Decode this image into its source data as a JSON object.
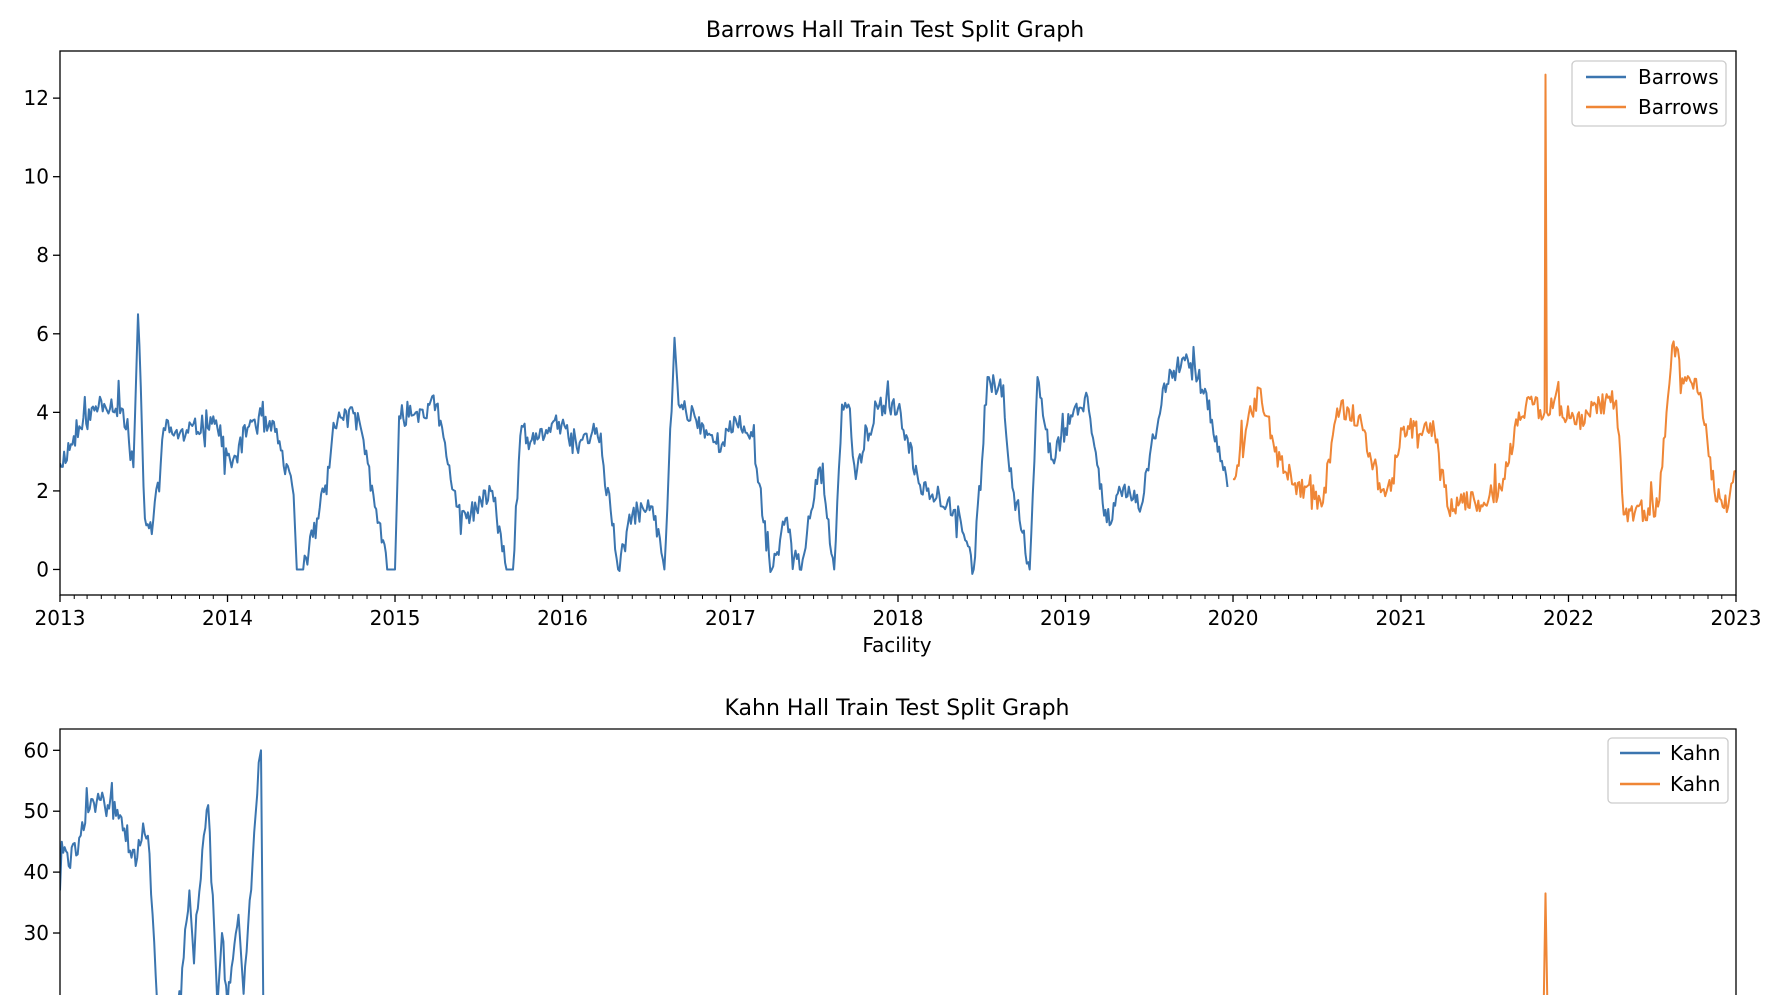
{
  "chart_data": [
    {
      "type": "line",
      "title": "Barrows Hall Train Test Split Graph",
      "xlabel": "Facility",
      "ylabel": "",
      "xlim": [
        "2013-01-01",
        "2023-01-01"
      ],
      "ylim": [
        -0.65,
        13.2
      ],
      "x_ticks": [
        "2013",
        "2014",
        "2015",
        "2016",
        "2017",
        "2018",
        "2019",
        "2020",
        "2021",
        "2022",
        "2023"
      ],
      "y_ticks": [
        0,
        2,
        4,
        6,
        8,
        10,
        12
      ],
      "grid": false,
      "legend": "top-right",
      "series": [
        {
          "name": "Barrows",
          "role": "train",
          "color": "#3b75af",
          "x": [
            "2013-01-01",
            "2013-02-15",
            "2013-04-01",
            "2013-05-15",
            "2013-06-10",
            "2013-06-20",
            "2013-07-05",
            "2013-07-20",
            "2013-08-15",
            "2013-10-01",
            "2013-12-01",
            "2014-01-10",
            "2014-02-20",
            "2014-04-15",
            "2014-05-25",
            "2014-06-01",
            "2014-06-15",
            "2014-07-15",
            "2014-09-01",
            "2014-10-15",
            "2014-11-15",
            "2014-12-15",
            "2015-01-01",
            "2015-01-10",
            "2015-02-15",
            "2015-04-01",
            "2015-05-15",
            "2015-06-15",
            "2015-08-01",
            "2015-09-01",
            "2015-09-15",
            "2015-10-01",
            "2015-11-01",
            "2015-12-15",
            "2016-02-01",
            "2016-03-15",
            "2016-04-15",
            "2016-05-01",
            "2016-06-01",
            "2016-07-15",
            "2016-08-10",
            "2016-09-01",
            "2016-09-10",
            "2016-10-15",
            "2016-12-01",
            "2017-01-15",
            "2017-02-15",
            "2017-04-01",
            "2017-05-01",
            "2017-06-01",
            "2017-07-15",
            "2017-08-15",
            "2017-09-01",
            "2017-09-15",
            "2017-10-01",
            "2017-11-15",
            "2018-01-01",
            "2018-02-15",
            "2018-04-01",
            "2018-05-15",
            "2018-06-15",
            "2018-07-15",
            "2018-08-15",
            "2018-09-01",
            "2018-10-15",
            "2018-11-01",
            "2018-12-01",
            "2019-01-01",
            "2019-02-15",
            "2019-04-01",
            "2019-05-01",
            "2019-06-15",
            "2019-08-01",
            "2019-09-15",
            "2019-11-01",
            "2019-12-20"
          ],
          "y": [
            2.7,
            3.6,
            4.3,
            4.1,
            2.6,
            6.5,
            1.3,
            0.9,
            3.6,
            3.4,
            3.9,
            2.6,
            3.8,
            3.5,
            1.9,
            0.0,
            0.0,
            1.3,
            4.0,
            3.8,
            1.9,
            0.0,
            0.0,
            3.9,
            4.0,
            4.2,
            1.6,
            1.4,
            2.0,
            0.0,
            0.0,
            3.4,
            3.2,
            3.8,
            3.1,
            3.6,
            1.5,
            0.0,
            1.4,
            1.6,
            0.0,
            5.9,
            4.2,
            3.9,
            3.2,
            3.7,
            3.5,
            0.0,
            1.3,
            0.0,
            2.6,
            0.0,
            4.2,
            4.2,
            2.3,
            4.2,
            4.1,
            2.2,
            1.9,
            1.4,
            0.0,
            4.9,
            4.4,
            2.5,
            0.0,
            4.9,
            2.8,
            3.6,
            4.5,
            1.2,
            2.0,
            1.6,
            4.6,
            5.4,
            4.6,
            2.1
          ]
        },
        {
          "name": "Barrows",
          "role": "test",
          "color": "#ef8636",
          "x": [
            "2020-01-01",
            "2020-02-01",
            "2020-03-01",
            "2020-04-01",
            "2020-05-15",
            "2020-07-15",
            "2020-08-15",
            "2020-10-01",
            "2020-11-15",
            "2020-12-10",
            "2021-01-01",
            "2021-03-15",
            "2021-04-15",
            "2021-05-15",
            "2021-07-01",
            "2021-08-15",
            "2021-09-15",
            "2021-10-15",
            "2021-11-10",
            "2021-11-12",
            "2021-11-15",
            "2021-12-01",
            "2022-01-15",
            "2022-03-01",
            "2022-04-15",
            "2022-05-01",
            "2022-06-15",
            "2022-07-15",
            "2022-08-15",
            "2022-09-15",
            "2022-10-15",
            "2022-11-15",
            "2022-12-15",
            "2023-01-01"
          ],
          "y": [
            2.3,
            3.7,
            4.6,
            3.0,
            2.2,
            1.7,
            4.1,
            3.9,
            2.2,
            2.0,
            3.6,
            3.5,
            1.5,
            1.7,
            1.7,
            2.3,
            4.0,
            4.2,
            4.0,
            12.6,
            4.0,
            4.3,
            3.7,
            4.2,
            4.3,
            1.4,
            1.5,
            1.6,
            5.7,
            4.8,
            4.5,
            2.0,
            1.6,
            2.5
          ]
        }
      ]
    },
    {
      "type": "line",
      "title": "Kahn Hall Train Test Split Graph",
      "xlabel": "",
      "ylabel": "",
      "ylim": [
        19,
        63.5
      ],
      "y_ticks": [
        30,
        40,
        50,
        60
      ],
      "grid": false,
      "legend": "top-right",
      "series": [
        {
          "name": "Kahn",
          "role": "train",
          "color": "#3b75af",
          "x": [
            "2013-01-01",
            "2013-01-05",
            "2013-01-20",
            "2013-02-15",
            "2013-03-10",
            "2013-04-15",
            "2013-05-15",
            "2013-06-15",
            "2013-07-01",
            "2013-07-15",
            "2013-08-01",
            "2013-08-20",
            "2013-09-15",
            "2013-10-10",
            "2013-10-20",
            "2013-10-25",
            "2013-11-20",
            "2013-12-10",
            "2013-12-20",
            "2014-01-01",
            "2014-01-25",
            "2014-02-05",
            "2014-02-25",
            "2014-03-10",
            "2014-03-15",
            "2014-03-20"
          ],
          "y": [
            37.0,
            45.0,
            41.0,
            46.0,
            52.0,
            51.0,
            49.0,
            41.0,
            48.0,
            43.0,
            18.0,
            18.0,
            18.0,
            37.0,
            25.0,
            33.0,
            51.0,
            18.0,
            30.0,
            18.0,
            33.0,
            20.0,
            42.0,
            58.0,
            60.0,
            18.0
          ]
        },
        {
          "name": "Kahn",
          "role": "test",
          "color": "#ef8636",
          "x": [
            "2021-11-08",
            "2021-11-12",
            "2021-11-16"
          ],
          "y": [
            18.0,
            36.5,
            18.0
          ]
        }
      ]
    }
  ]
}
